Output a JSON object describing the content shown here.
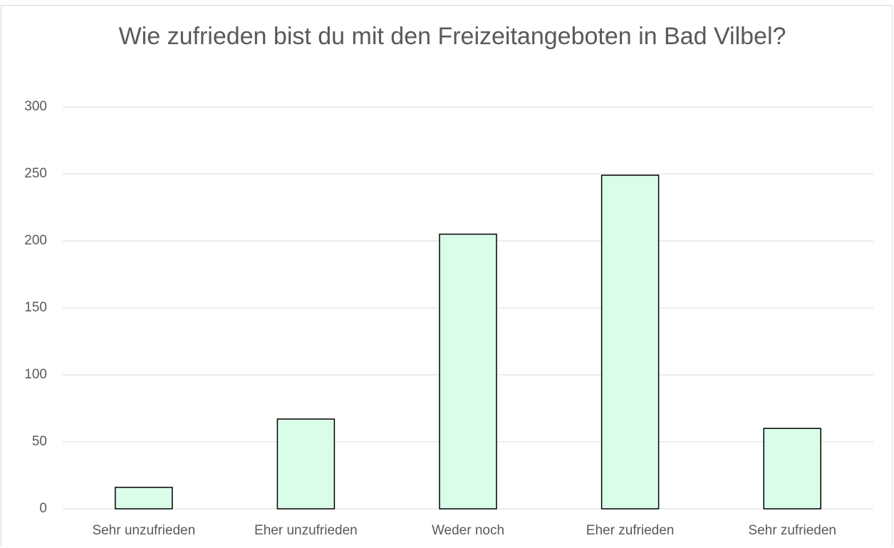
{
  "chart_data": {
    "type": "bar",
    "title": "Wie zufrieden bist du mit den Freizeitangeboten in Bad Vilbel?",
    "categories": [
      "Sehr unzufrieden",
      "Eher unzufrieden",
      "Weder noch",
      "Eher zufrieden",
      "Sehr zufrieden"
    ],
    "values": [
      16,
      67,
      205,
      249,
      60
    ],
    "color": "#d9fde9",
    "ylim": [
      0,
      300
    ],
    "yticks": [
      0,
      50,
      100,
      150,
      200,
      250,
      300
    ],
    "grid": true
  }
}
